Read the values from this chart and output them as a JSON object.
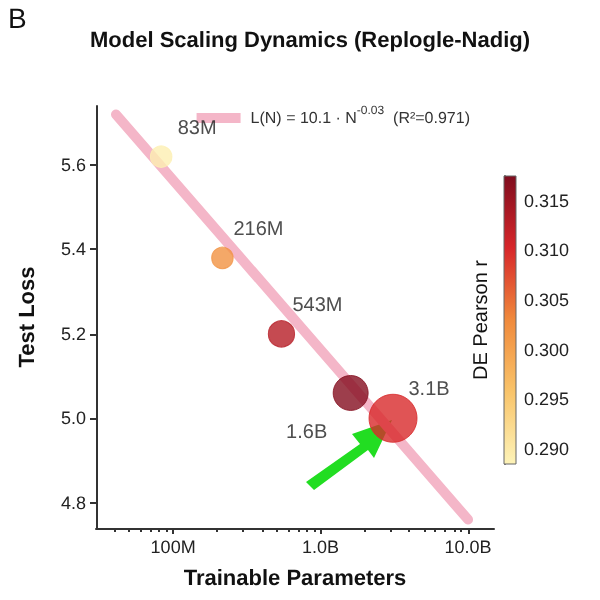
{
  "chart_data": {
    "type": "bubble",
    "title": "Model Scaling Dynamics (Replogle-Nadig)",
    "xlabel": "Trainable Parameters",
    "ylabel": "Test Loss",
    "clabel": "DE Pearson r",
    "annotations": [
      "B",
      {
        "text": "83M",
        "x": 83000000,
        "y": 5.62
      },
      {
        "text": "216M",
        "x": 216000000,
        "y": 5.38
      },
      {
        "text": "543M",
        "x": 543000000,
        "y": 5.2
      },
      {
        "text": "1.6B",
        "x": 1600000000,
        "y": 5.06
      },
      {
        "text": "3.1B",
        "x": 3100000000,
        "y": 5.0
      }
    ],
    "log": "x",
    "grid": false,
    "legend": "top right",
    "xlim": [
      30000000,
      15000000000
    ],
    "xticks": [
      {
        "value": 100000000,
        "label": "100M"
      },
      {
        "value": 1000000000,
        "label": "1.0B"
      },
      {
        "value": 10000000000,
        "label": "10.0B"
      }
    ],
    "ylim": [
      4.74,
      5.74
    ],
    "yticks": [
      4.8,
      {
        "value": 5,
        "label": "5.0"
      },
      5.2,
      5.4,
      5.6
    ],
    "clim": [
      0.2885,
      0.3175
    ],
    "cticks": [
      {
        "value": 0.29,
        "label": "0.290"
      },
      0.295,
      {
        "value": 0.3,
        "label": "0.300"
      },
      0.305,
      {
        "value": 0.31,
        "label": "0.310"
      },
      0.315
    ],
    "series": [
      {
        "type": "line",
        "name": "L(N) = 10.1 · N$^{-0.03}$  (R²=0.971)",
        "color": "#f4b6c8",
        "x": [
          41000000,
          10000000000
        ],
        "values": [
          5.72,
          4.76
        ]
      },
      {
        "x": [
          83000000,
          216000000,
          543000000,
          1600000000,
          3100000000
        ],
        "values": [
          5.62,
          5.38,
          5.2,
          5.06,
          5.0
        ],
        "sizes": [
          0.2,
          0.2,
          0.3,
          0.53,
          1
        ],
        "cvalues": [
          0.289,
          0.302,
          0.313,
          0.317,
          0.31
        ],
        "colors": [
          "#fcefb2",
          "#f19242",
          "#b61d25",
          "#840e1f",
          "#d8292b"
        ]
      }
    ]
  }
}
